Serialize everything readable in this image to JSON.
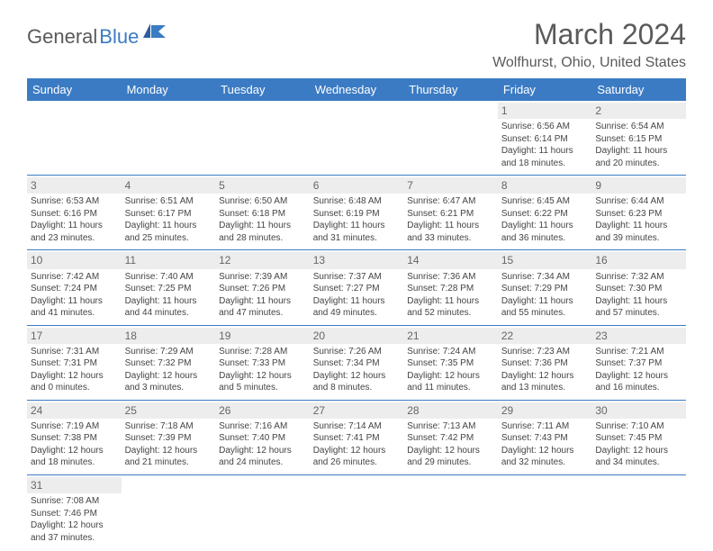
{
  "logo": {
    "dark": "General",
    "blue": "Blue"
  },
  "title": "March 2024",
  "location": "Wolfhurst, Ohio, United States",
  "weekdays": [
    "Sunday",
    "Monday",
    "Tuesday",
    "Wednesday",
    "Thursday",
    "Friday",
    "Saturday"
  ],
  "colors": {
    "header_bg": "#3b7bc4",
    "header_text": "#ffffff",
    "daynum_bg": "#ededed",
    "text": "#444444",
    "title_text": "#5a5a5a",
    "row_border": "#3b7bc4"
  },
  "fonts": {
    "title_size_pt": 24,
    "location_size_pt": 12,
    "weekday_size_pt": 10,
    "daynum_size_pt": 9,
    "body_size_pt": 7.5
  },
  "weeks": [
    [
      {
        "n": "",
        "sr": "",
        "ss": "",
        "dl": ""
      },
      {
        "n": "",
        "sr": "",
        "ss": "",
        "dl": ""
      },
      {
        "n": "",
        "sr": "",
        "ss": "",
        "dl": ""
      },
      {
        "n": "",
        "sr": "",
        "ss": "",
        "dl": ""
      },
      {
        "n": "",
        "sr": "",
        "ss": "",
        "dl": ""
      },
      {
        "n": "1",
        "sr": "Sunrise: 6:56 AM",
        "ss": "Sunset: 6:14 PM",
        "dl": "Daylight: 11 hours and 18 minutes."
      },
      {
        "n": "2",
        "sr": "Sunrise: 6:54 AM",
        "ss": "Sunset: 6:15 PM",
        "dl": "Daylight: 11 hours and 20 minutes."
      }
    ],
    [
      {
        "n": "3",
        "sr": "Sunrise: 6:53 AM",
        "ss": "Sunset: 6:16 PM",
        "dl": "Daylight: 11 hours and 23 minutes."
      },
      {
        "n": "4",
        "sr": "Sunrise: 6:51 AM",
        "ss": "Sunset: 6:17 PM",
        "dl": "Daylight: 11 hours and 25 minutes."
      },
      {
        "n": "5",
        "sr": "Sunrise: 6:50 AM",
        "ss": "Sunset: 6:18 PM",
        "dl": "Daylight: 11 hours and 28 minutes."
      },
      {
        "n": "6",
        "sr": "Sunrise: 6:48 AM",
        "ss": "Sunset: 6:19 PM",
        "dl": "Daylight: 11 hours and 31 minutes."
      },
      {
        "n": "7",
        "sr": "Sunrise: 6:47 AM",
        "ss": "Sunset: 6:21 PM",
        "dl": "Daylight: 11 hours and 33 minutes."
      },
      {
        "n": "8",
        "sr": "Sunrise: 6:45 AM",
        "ss": "Sunset: 6:22 PM",
        "dl": "Daylight: 11 hours and 36 minutes."
      },
      {
        "n": "9",
        "sr": "Sunrise: 6:44 AM",
        "ss": "Sunset: 6:23 PM",
        "dl": "Daylight: 11 hours and 39 minutes."
      }
    ],
    [
      {
        "n": "10",
        "sr": "Sunrise: 7:42 AM",
        "ss": "Sunset: 7:24 PM",
        "dl": "Daylight: 11 hours and 41 minutes."
      },
      {
        "n": "11",
        "sr": "Sunrise: 7:40 AM",
        "ss": "Sunset: 7:25 PM",
        "dl": "Daylight: 11 hours and 44 minutes."
      },
      {
        "n": "12",
        "sr": "Sunrise: 7:39 AM",
        "ss": "Sunset: 7:26 PM",
        "dl": "Daylight: 11 hours and 47 minutes."
      },
      {
        "n": "13",
        "sr": "Sunrise: 7:37 AM",
        "ss": "Sunset: 7:27 PM",
        "dl": "Daylight: 11 hours and 49 minutes."
      },
      {
        "n": "14",
        "sr": "Sunrise: 7:36 AM",
        "ss": "Sunset: 7:28 PM",
        "dl": "Daylight: 11 hours and 52 minutes."
      },
      {
        "n": "15",
        "sr": "Sunrise: 7:34 AM",
        "ss": "Sunset: 7:29 PM",
        "dl": "Daylight: 11 hours and 55 minutes."
      },
      {
        "n": "16",
        "sr": "Sunrise: 7:32 AM",
        "ss": "Sunset: 7:30 PM",
        "dl": "Daylight: 11 hours and 57 minutes."
      }
    ],
    [
      {
        "n": "17",
        "sr": "Sunrise: 7:31 AM",
        "ss": "Sunset: 7:31 PM",
        "dl": "Daylight: 12 hours and 0 minutes."
      },
      {
        "n": "18",
        "sr": "Sunrise: 7:29 AM",
        "ss": "Sunset: 7:32 PM",
        "dl": "Daylight: 12 hours and 3 minutes."
      },
      {
        "n": "19",
        "sr": "Sunrise: 7:28 AM",
        "ss": "Sunset: 7:33 PM",
        "dl": "Daylight: 12 hours and 5 minutes."
      },
      {
        "n": "20",
        "sr": "Sunrise: 7:26 AM",
        "ss": "Sunset: 7:34 PM",
        "dl": "Daylight: 12 hours and 8 minutes."
      },
      {
        "n": "21",
        "sr": "Sunrise: 7:24 AM",
        "ss": "Sunset: 7:35 PM",
        "dl": "Daylight: 12 hours and 11 minutes."
      },
      {
        "n": "22",
        "sr": "Sunrise: 7:23 AM",
        "ss": "Sunset: 7:36 PM",
        "dl": "Daylight: 12 hours and 13 minutes."
      },
      {
        "n": "23",
        "sr": "Sunrise: 7:21 AM",
        "ss": "Sunset: 7:37 PM",
        "dl": "Daylight: 12 hours and 16 minutes."
      }
    ],
    [
      {
        "n": "24",
        "sr": "Sunrise: 7:19 AM",
        "ss": "Sunset: 7:38 PM",
        "dl": "Daylight: 12 hours and 18 minutes."
      },
      {
        "n": "25",
        "sr": "Sunrise: 7:18 AM",
        "ss": "Sunset: 7:39 PM",
        "dl": "Daylight: 12 hours and 21 minutes."
      },
      {
        "n": "26",
        "sr": "Sunrise: 7:16 AM",
        "ss": "Sunset: 7:40 PM",
        "dl": "Daylight: 12 hours and 24 minutes."
      },
      {
        "n": "27",
        "sr": "Sunrise: 7:14 AM",
        "ss": "Sunset: 7:41 PM",
        "dl": "Daylight: 12 hours and 26 minutes."
      },
      {
        "n": "28",
        "sr": "Sunrise: 7:13 AM",
        "ss": "Sunset: 7:42 PM",
        "dl": "Daylight: 12 hours and 29 minutes."
      },
      {
        "n": "29",
        "sr": "Sunrise: 7:11 AM",
        "ss": "Sunset: 7:43 PM",
        "dl": "Daylight: 12 hours and 32 minutes."
      },
      {
        "n": "30",
        "sr": "Sunrise: 7:10 AM",
        "ss": "Sunset: 7:45 PM",
        "dl": "Daylight: 12 hours and 34 minutes."
      }
    ],
    [
      {
        "n": "31",
        "sr": "Sunrise: 7:08 AM",
        "ss": "Sunset: 7:46 PM",
        "dl": "Daylight: 12 hours and 37 minutes."
      },
      {
        "n": "",
        "sr": "",
        "ss": "",
        "dl": ""
      },
      {
        "n": "",
        "sr": "",
        "ss": "",
        "dl": ""
      },
      {
        "n": "",
        "sr": "",
        "ss": "",
        "dl": ""
      },
      {
        "n": "",
        "sr": "",
        "ss": "",
        "dl": ""
      },
      {
        "n": "",
        "sr": "",
        "ss": "",
        "dl": ""
      },
      {
        "n": "",
        "sr": "",
        "ss": "",
        "dl": ""
      }
    ]
  ]
}
